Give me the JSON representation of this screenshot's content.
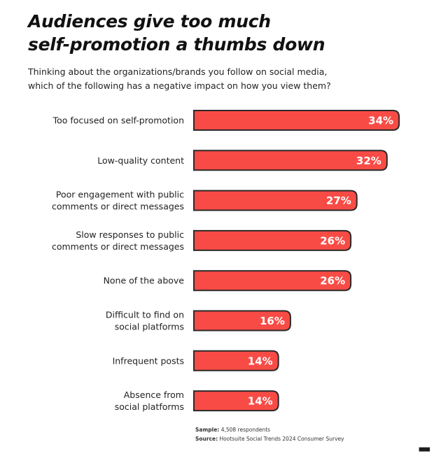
{
  "title_lines": [
    "Audiences give too much",
    "self-promotion a thumbs down"
  ],
  "subtitle_lines": [
    "Thinking about the organizations/brands you follow on social media,",
    "which of the following has a negative impact on how you view them?"
  ],
  "chart_data": {
    "type": "bar",
    "orientation": "horizontal",
    "categories": [
      [
        "Too focused on self-promotion"
      ],
      [
        "Low-quality content"
      ],
      [
        "Poor engagement with public",
        "comments or direct messages"
      ],
      [
        "Slow responses to public",
        "comments or direct messages"
      ],
      [
        "None of the above"
      ],
      [
        "Difficult to find on",
        "social platforms"
      ],
      [
        "Infrequent posts"
      ],
      [
        "Absence from",
        "social platforms"
      ]
    ],
    "values": [
      34,
      32,
      27,
      26,
      26,
      16,
      14,
      14
    ],
    "value_labels": [
      "34%",
      "32%",
      "27%",
      "26%",
      "26%",
      "16%",
      "14%",
      "14%"
    ],
    "unit": "%",
    "bar_color": "#f94b45",
    "border_color": "#2a2a2a",
    "grid": false
  },
  "notes": {
    "sample_label": "Sample:",
    "sample_value": "4,508 respondents",
    "source_label": "Source:",
    "source_value": "Hootsuite Social Trends 2024 Consumer Survey"
  }
}
